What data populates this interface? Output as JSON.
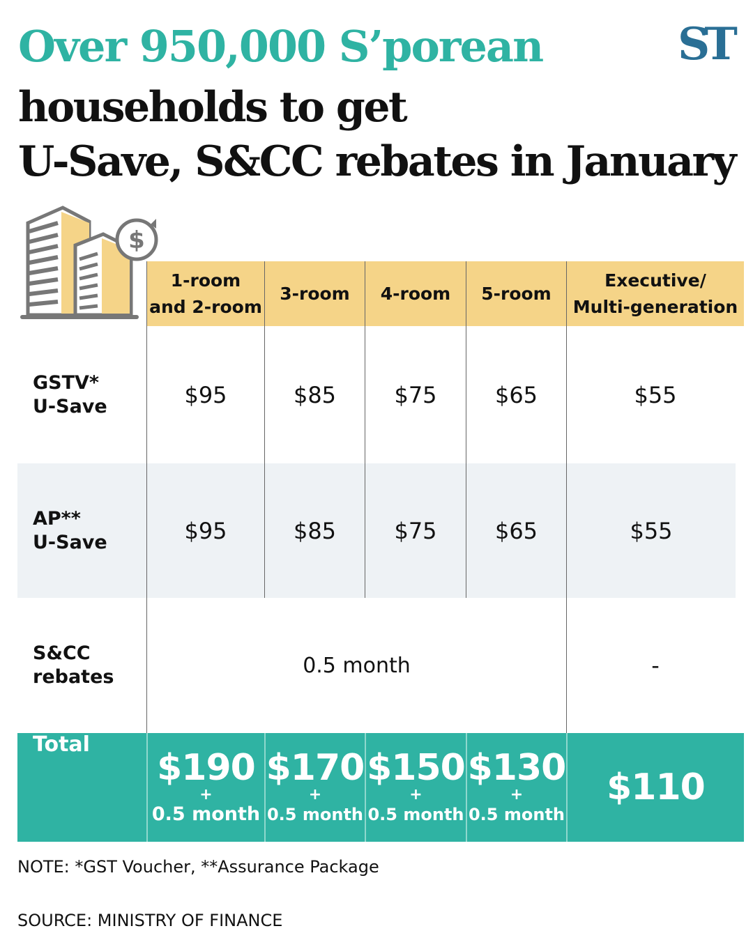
{
  "title": {
    "line1": "Over 950,000 S’porean",
    "line2": "households to get",
    "line3": "U-Save, S&CC rebates in January"
  },
  "logo": "ST",
  "icon": "building-with-dollar-rebate-icon",
  "colors": {
    "teal": "#2fb3a3",
    "yellow": "#f5d488",
    "row_alt": "#eef2f5",
    "logo": "#2a6f95"
  },
  "table": {
    "headers": [
      "1-room\nand 2-room",
      "3-room",
      "4-room",
      "5-room",
      "Executive/\nMulti-generation"
    ],
    "rows": [
      {
        "label": "GSTV*\nU-Save",
        "values": [
          "$95",
          "$85",
          "$75",
          "$65",
          "$55"
        ]
      },
      {
        "label": "AP**\nU-Save",
        "values": [
          "$95",
          "$85",
          "$75",
          "$65",
          "$55"
        ]
      },
      {
        "label": "S&CC\nrebates",
        "span_value": "0.5 month",
        "last": "-"
      }
    ],
    "total": {
      "label": "Total",
      "values": [
        "$190",
        "$170",
        "$150",
        "$130"
      ],
      "plus": "+",
      "extra": "0.5 month",
      "last": "$110"
    }
  },
  "note": "NOTE: *GST Voucher, **Assurance Package",
  "source": "SOURCE: MINISTRY OF FINANCE"
}
